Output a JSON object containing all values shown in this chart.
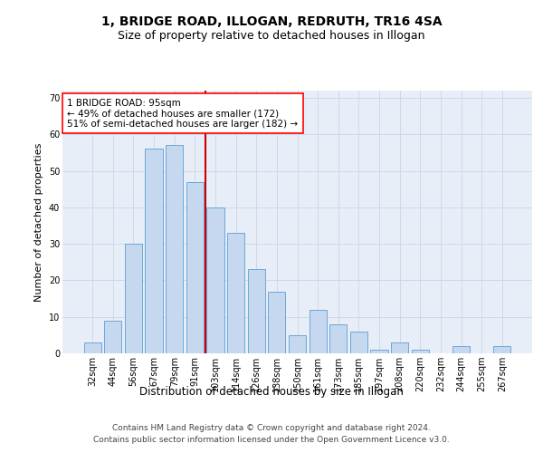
{
  "title": "1, BRIDGE ROAD, ILLOGAN, REDRUTH, TR16 4SA",
  "subtitle": "Size of property relative to detached houses in Illogan",
  "xlabel": "Distribution of detached houses by size in Illogan",
  "ylabel": "Number of detached properties",
  "categories": [
    "32sqm",
    "44sqm",
    "56sqm",
    "67sqm",
    "79sqm",
    "91sqm",
    "103sqm",
    "114sqm",
    "126sqm",
    "138sqm",
    "150sqm",
    "161sqm",
    "173sqm",
    "185sqm",
    "197sqm",
    "208sqm",
    "220sqm",
    "232sqm",
    "244sqm",
    "255sqm",
    "267sqm"
  ],
  "values": [
    3,
    9,
    30,
    56,
    57,
    47,
    40,
    33,
    23,
    17,
    5,
    12,
    8,
    6,
    1,
    3,
    1,
    0,
    2,
    0,
    2
  ],
  "bar_color": "#c5d8f0",
  "bar_edge_color": "#5a9fd4",
  "vline_x": 5.5,
  "vline_color": "#cc0000",
  "annotation_box_text": "1 BRIDGE ROAD: 95sqm\n← 49% of detached houses are smaller (172)\n51% of semi-detached houses are larger (182) →",
  "ylim": [
    0,
    72
  ],
  "yticks": [
    0,
    10,
    20,
    30,
    40,
    50,
    60,
    70
  ],
  "grid_color": "#d0d8e8",
  "background_color": "#e8eef8",
  "footer_line1": "Contains HM Land Registry data © Crown copyright and database right 2024.",
  "footer_line2": "Contains public sector information licensed under the Open Government Licence v3.0.",
  "title_fontsize": 10,
  "subtitle_fontsize": 9,
  "xlabel_fontsize": 8.5,
  "ylabel_fontsize": 8,
  "tick_fontsize": 7,
  "annotation_fontsize": 7.5,
  "footer_fontsize": 6.5
}
